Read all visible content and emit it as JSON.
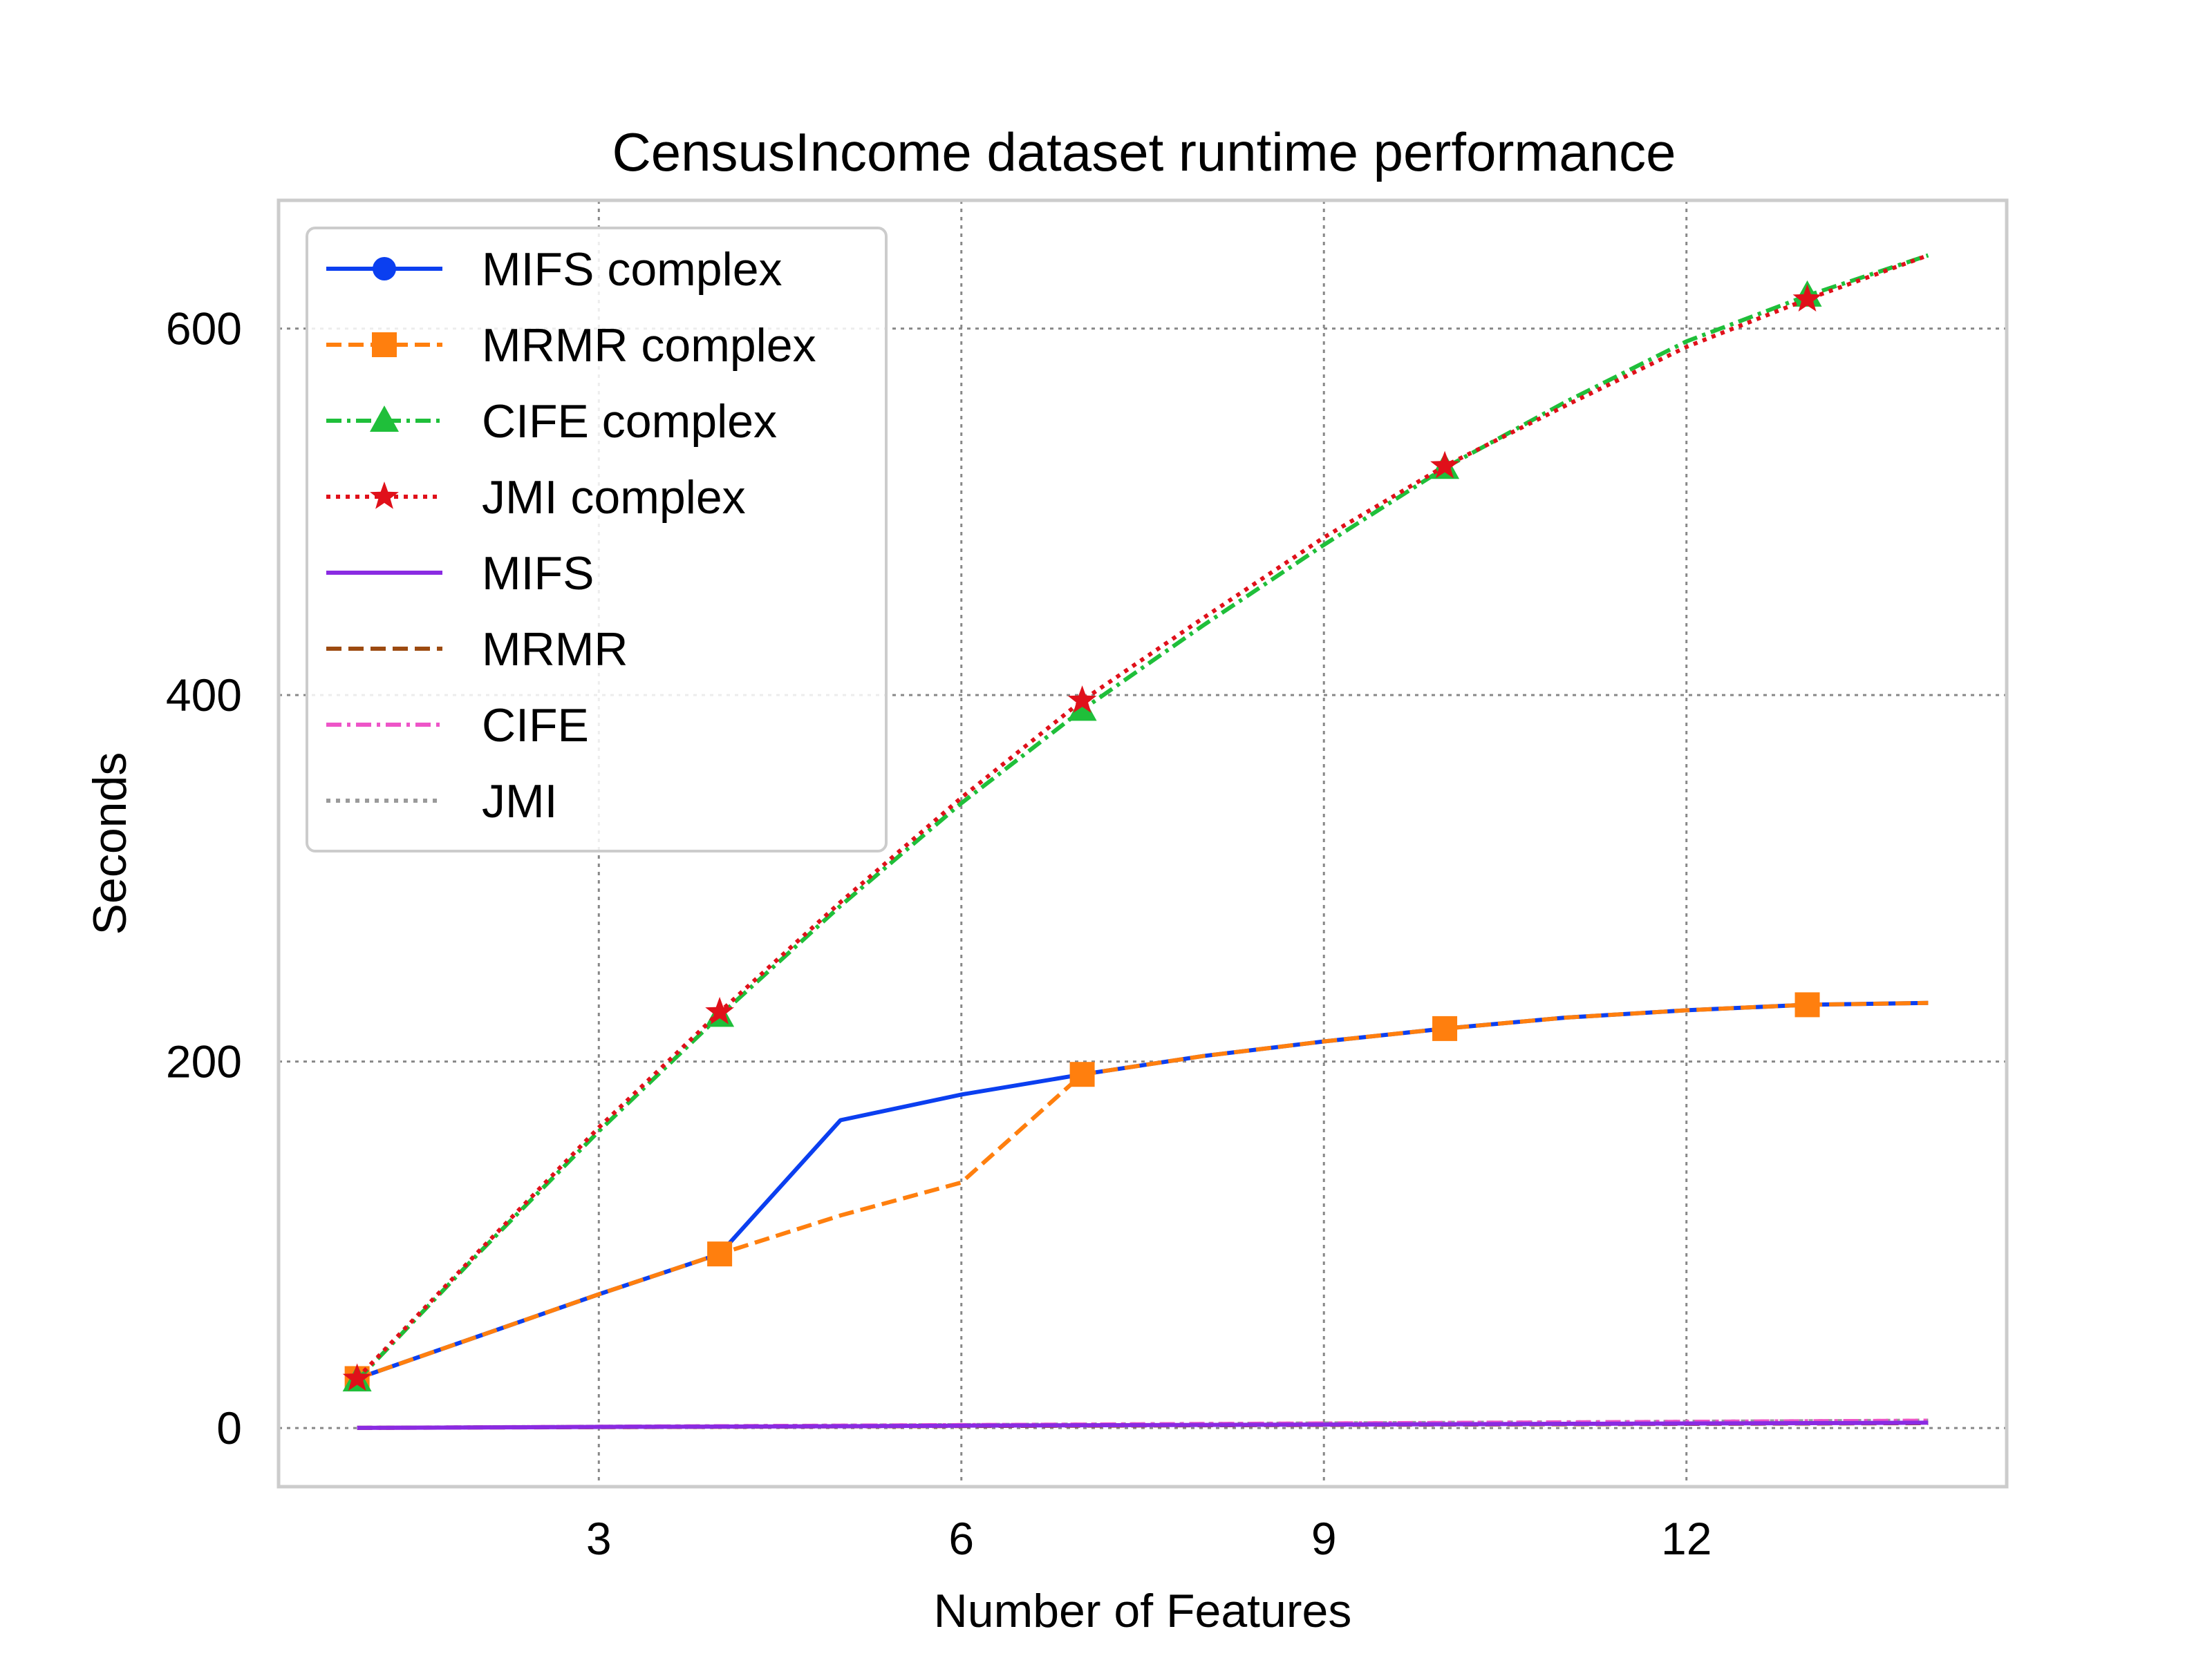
{
  "chart_data": {
    "type": "line",
    "title": "CensusIncome dataset runtime performance",
    "xlabel": "Number of Features",
    "ylabel": "Seconds",
    "xlim": [
      0.35,
      14.65
    ],
    "ylim": [
      -32,
      670
    ],
    "xticks": [
      3,
      6,
      9,
      12
    ],
    "yticks": [
      0,
      200,
      400,
      600
    ],
    "grid": true,
    "legend_position": "top-left",
    "x": [
      1,
      2,
      3,
      4,
      5,
      6,
      7,
      8,
      9,
      10,
      11,
      12,
      13,
      14
    ],
    "series": [
      {
        "name": "MIFS complex",
        "color": "#0b3ff0",
        "dash": "solid",
        "marker": "circle",
        "markevery": 3,
        "values": [
          27,
          50,
          73,
          95,
          168,
          182,
          193,
          203,
          211,
          218,
          224,
          228,
          231,
          232
        ]
      },
      {
        "name": "MRMR complex",
        "color": "#ff7f0e",
        "dash": "dashed",
        "marker": "square",
        "markevery": 3,
        "values": [
          27,
          50,
          73,
          95,
          116,
          134,
          193,
          203,
          211,
          218,
          224,
          228,
          231,
          232
        ]
      },
      {
        "name": "CIFE complex",
        "color": "#1fbf3a",
        "dash": "dashdot",
        "marker": "triangle",
        "markevery": 3,
        "values": [
          26,
          95,
          162,
          225,
          285,
          341,
          392,
          438,
          482,
          524,
          560,
          593,
          618,
          640
        ]
      },
      {
        "name": "JMI complex",
        "color": "#e0101a",
        "dash": "dotted",
        "marker": "star",
        "markevery": 3,
        "values": [
          27,
          96,
          164,
          227,
          287,
          344,
          397,
          442,
          486,
          525,
          558,
          590,
          616,
          640
        ]
      },
      {
        "name": "MIFS",
        "color": "#8a2be2",
        "dash": "solid",
        "marker": "none",
        "values": [
          0.1,
          0.3,
          0.6,
          0.8,
          1.0,
          1.3,
          1.5,
          1.7,
          1.9,
          2.1,
          2.3,
          2.5,
          2.7,
          2.9
        ]
      },
      {
        "name": "MRMR",
        "color": "#9c4a10",
        "dash": "dashed",
        "marker": "none",
        "values": [
          0.1,
          0.3,
          0.5,
          0.7,
          0.9,
          1.1,
          1.3,
          1.5,
          1.7,
          1.9,
          2.1,
          2.3,
          2.5,
          2.7
        ]
      },
      {
        "name": "CIFE",
        "color": "#ee55c8",
        "dash": "dashdot",
        "marker": "none",
        "values": [
          0.1,
          0.4,
          0.7,
          1.0,
          1.3,
          1.6,
          1.9,
          2.2,
          2.5,
          2.8,
          3.1,
          3.4,
          3.7,
          4.0
        ]
      },
      {
        "name": "JMI",
        "color": "#9a9a9a",
        "dash": "dotted",
        "marker": "none",
        "values": [
          0.1,
          0.4,
          0.7,
          1.0,
          1.3,
          1.6,
          1.9,
          2.2,
          2.5,
          2.8,
          3.1,
          3.4,
          3.7,
          4.0
        ]
      }
    ]
  }
}
